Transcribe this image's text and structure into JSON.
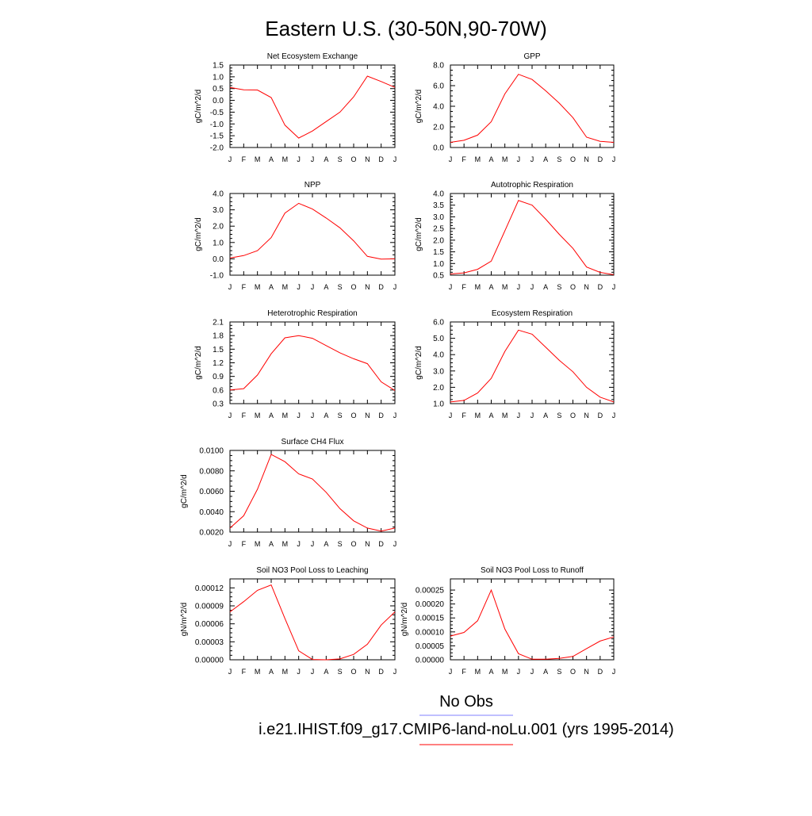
{
  "page": {
    "title": "Eastern U.S. (30-50N,90-70W)",
    "legend": {
      "items": [
        {
          "label": "No Obs",
          "color": "#8080ff"
        },
        {
          "label": "i.e21.IHIST.f09_g17.CMIP6-land-noLu.001 (yrs 1995-2014)",
          "color": "#ff0000"
        }
      ]
    },
    "line_color": "#ff0000"
  },
  "chart_data": [
    {
      "type": "line",
      "title": "Net Ecosystem Exchange",
      "ylabel": "gC/m^2/d",
      "xlabel": "",
      "x": [
        "J",
        "F",
        "M",
        "A",
        "M",
        "J",
        "J",
        "A",
        "S",
        "O",
        "N",
        "D",
        "J"
      ],
      "ylim": [
        -2.0,
        1.5
      ],
      "yticks": [
        "-2.0",
        "-1.5",
        "-1.0",
        "-0.5",
        "0.0",
        "0.5",
        "1.0",
        "1.5"
      ],
      "series": [
        {
          "values": [
            0.55,
            0.45,
            0.44,
            0.12,
            -1.05,
            -1.6,
            -1.3,
            -0.9,
            -0.5,
            0.15,
            1.03,
            0.8,
            0.55
          ]
        }
      ]
    },
    {
      "type": "line",
      "title": "GPP",
      "ylabel": "gC/m^2/d",
      "xlabel": "",
      "x": [
        "J",
        "F",
        "M",
        "A",
        "M",
        "J",
        "J",
        "A",
        "S",
        "O",
        "N",
        "D",
        "J"
      ],
      "ylim": [
        0.0,
        8.0
      ],
      "yticks": [
        "0.0",
        "2.0",
        "4.0",
        "6.0",
        "8.0"
      ],
      "series": [
        {
          "values": [
            0.5,
            0.7,
            1.2,
            2.5,
            5.2,
            7.1,
            6.6,
            5.5,
            4.3,
            2.9,
            1.0,
            0.6,
            0.5
          ]
        }
      ]
    },
    {
      "type": "line",
      "title": "NPP",
      "ylabel": "gC/m^2/d",
      "xlabel": "",
      "x": [
        "J",
        "F",
        "M",
        "A",
        "M",
        "J",
        "J",
        "A",
        "S",
        "O",
        "N",
        "D",
        "J"
      ],
      "ylim": [
        -1.0,
        4.0
      ],
      "yticks": [
        "-1.0",
        "0.0",
        "1.0",
        "2.0",
        "3.0",
        "4.0"
      ],
      "series": [
        {
          "values": [
            0.05,
            0.2,
            0.5,
            1.3,
            2.8,
            3.4,
            3.05,
            2.5,
            1.9,
            1.1,
            0.15,
            -0.02,
            0.0
          ]
        }
      ]
    },
    {
      "type": "line",
      "title": "Autotrophic Respiration",
      "ylabel": "gC/m^2/d",
      "xlabel": "",
      "x": [
        "J",
        "F",
        "M",
        "A",
        "M",
        "J",
        "J",
        "A",
        "S",
        "O",
        "N",
        "D",
        "J"
      ],
      "ylim": [
        0.5,
        4.0
      ],
      "yticks": [
        "0.5",
        "1.0",
        "1.5",
        "2.0",
        "2.5",
        "3.0",
        "3.5",
        "4.0"
      ],
      "series": [
        {
          "values": [
            0.55,
            0.6,
            0.75,
            1.1,
            2.4,
            3.7,
            3.5,
            2.9,
            2.25,
            1.65,
            0.85,
            0.62,
            0.52
          ]
        }
      ]
    },
    {
      "type": "line",
      "title": "Heterotrophic Respiration",
      "ylabel": "gC/m^2/d",
      "xlabel": "",
      "x": [
        "J",
        "F",
        "M",
        "A",
        "M",
        "J",
        "J",
        "A",
        "S",
        "O",
        "N",
        "D",
        "J"
      ],
      "ylim": [
        0.3,
        2.1
      ],
      "yticks": [
        "0.3",
        "0.6",
        "0.9",
        "1.2",
        "1.5",
        "1.8",
        "2.1"
      ],
      "series": [
        {
          "values": [
            0.6,
            0.63,
            0.93,
            1.4,
            1.75,
            1.8,
            1.74,
            1.58,
            1.42,
            1.29,
            1.18,
            0.78,
            0.59
          ]
        }
      ]
    },
    {
      "type": "line",
      "title": "Ecosystem Respiration",
      "ylabel": "gC/m^2/d",
      "xlabel": "",
      "x": [
        "J",
        "F",
        "M",
        "A",
        "M",
        "J",
        "J",
        "A",
        "S",
        "O",
        "N",
        "D",
        "J"
      ],
      "ylim": [
        1.0,
        6.0
      ],
      "yticks": [
        "1.0",
        "2.0",
        "3.0",
        "4.0",
        "5.0",
        "6.0"
      ],
      "series": [
        {
          "values": [
            1.1,
            1.2,
            1.65,
            2.55,
            4.2,
            5.5,
            5.25,
            4.45,
            3.65,
            2.95,
            2.0,
            1.4,
            1.1
          ]
        }
      ]
    },
    {
      "type": "line",
      "title": "Surface CH4 Flux",
      "ylabel": "gC/m^2/d",
      "xlabel": "",
      "x": [
        "J",
        "F",
        "M",
        "A",
        "M",
        "J",
        "J",
        "A",
        "S",
        "O",
        "N",
        "D",
        "J"
      ],
      "ylim": [
        0.002,
        0.01
      ],
      "yticks": [
        "0.0020",
        "0.0040",
        "0.0060",
        "0.0080",
        "0.0100"
      ],
      "series": [
        {
          "values": [
            0.0024,
            0.0036,
            0.0062,
            0.0096,
            0.0089,
            0.0077,
            0.0072,
            0.0059,
            0.0043,
            0.0031,
            0.0024,
            0.0021,
            0.0024
          ]
        }
      ]
    },
    {
      "type": "line",
      "title": "Soil NO3 Pool Loss to Leaching",
      "ylabel": "gN/m^2/d",
      "xlabel": "",
      "x": [
        "J",
        "F",
        "M",
        "A",
        "M",
        "J",
        "J",
        "A",
        "S",
        "O",
        "N",
        "D",
        "J"
      ],
      "ylim": [
        0.0,
        0.000135
      ],
      "yticks": [
        "0.00000",
        "0.00003",
        "0.00006",
        "0.00009",
        "0.00012"
      ],
      "series": [
        {
          "values": [
            8e-05,
            9.7e-05,
            0.000116,
            0.000125,
            6.9e-05,
            1.5e-05,
            5e-07,
            0.0,
            1.5e-06,
            9e-06,
            2.6e-05,
            5.8e-05,
            8e-05
          ]
        }
      ]
    },
    {
      "type": "line",
      "title": "Soil NO3 Pool Loss to Runoff",
      "ylabel": "gN/m^2/d",
      "xlabel": "",
      "x": [
        "J",
        "F",
        "M",
        "A",
        "M",
        "J",
        "J",
        "A",
        "S",
        "O",
        "N",
        "D",
        "J"
      ],
      "ylim": [
        0.0,
        0.00029
      ],
      "yticks": [
        "0.00000",
        "0.00005",
        "0.00010",
        "0.00015",
        "0.00020",
        "0.00025"
      ],
      "series": [
        {
          "values": [
            8.5e-05,
            9.8e-05,
            0.00014,
            0.00025,
            0.00011,
            2.2e-05,
            2e-06,
            2e-06,
            5e-06,
            1.2e-05,
            4e-05,
            6.7e-05,
            8.2e-05
          ]
        }
      ]
    }
  ]
}
